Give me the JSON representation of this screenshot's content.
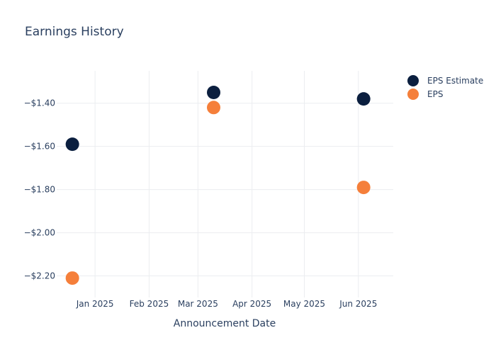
{
  "chart_data": {
    "type": "scatter",
    "title": "Earnings History",
    "xlabel": "Announcement Date",
    "ylabel": "",
    "x_ticks": [
      {
        "date": "2025-01-01",
        "label": "Jan 2025"
      },
      {
        "date": "2025-02-01",
        "label": "Feb 2025"
      },
      {
        "date": "2025-03-01",
        "label": "Mar 2025"
      },
      {
        "date": "2025-04-01",
        "label": "Apr 2025"
      },
      {
        "date": "2025-05-01",
        "label": "May 2025"
      },
      {
        "date": "2025-06-01",
        "label": "Jun 2025"
      }
    ],
    "xlim": [
      "2024-12-10",
      "2025-06-21"
    ],
    "y_ticks": [
      {
        "value": -1.4,
        "label": "−$1.40"
      },
      {
        "value": -1.6,
        "label": "−$1.60"
      },
      {
        "value": -1.8,
        "label": "−$1.80"
      },
      {
        "value": -2.0,
        "label": "−$2.00"
      },
      {
        "value": -2.2,
        "label": "−$2.20"
      }
    ],
    "ylim": [
      -2.3,
      -1.25
    ],
    "grid": true,
    "legend_position": "top-right",
    "series": [
      {
        "name": "EPS Estimate",
        "color": "#0b1f3f",
        "points": [
          {
            "x": "2024-12-19",
            "y": -1.59
          },
          {
            "x": "2025-03-10",
            "y": -1.35
          },
          {
            "x": "2025-06-04",
            "y": -1.38
          }
        ]
      },
      {
        "name": "EPS",
        "color": "#f57f3a",
        "points": [
          {
            "x": "2024-12-19",
            "y": -2.21
          },
          {
            "x": "2025-03-10",
            "y": -1.42
          },
          {
            "x": "2025-06-04",
            "y": -1.79
          }
        ]
      }
    ]
  }
}
